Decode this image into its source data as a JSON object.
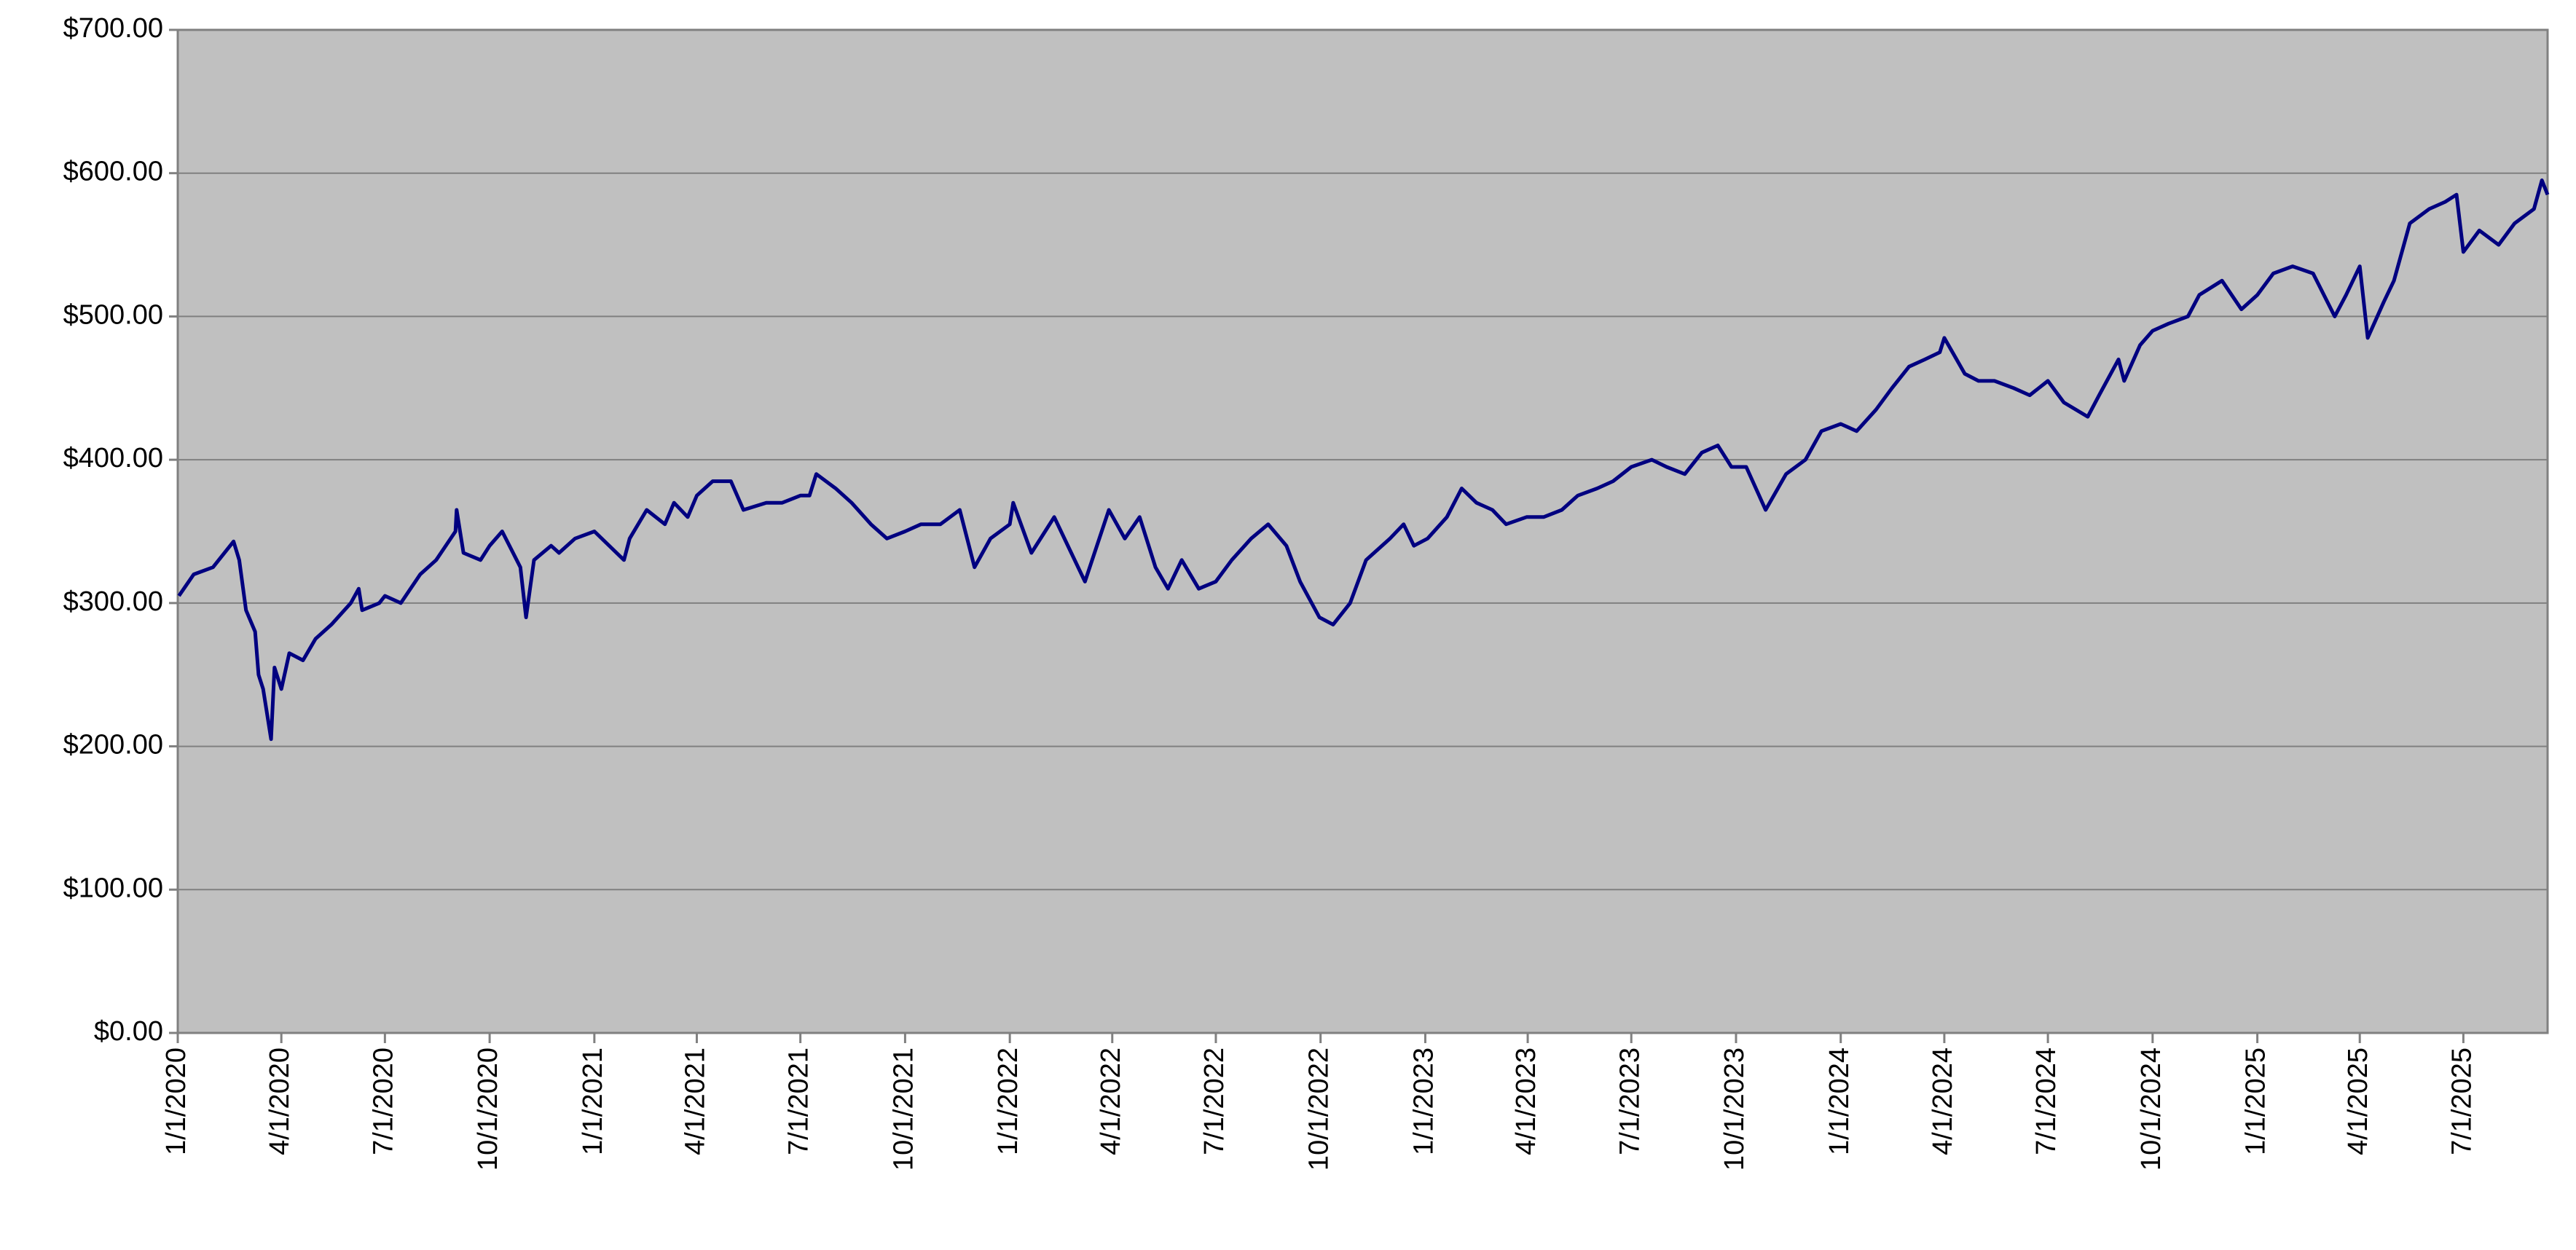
{
  "chart_data": {
    "type": "line",
    "color": "#000080",
    "grid": true,
    "xlim": [
      "1/1/2020",
      "9/13/2025"
    ],
    "xticks": [
      "1/1/2020",
      "4/1/2020",
      "7/1/2020",
      "10/1/2020",
      "1/1/2021",
      "4/1/2021",
      "7/1/2021",
      "10/1/2021",
      "1/1/2022",
      "4/1/2022",
      "7/1/2022",
      "10/1/2022",
      "1/1/2023",
      "4/1/2023",
      "7/1/2023",
      "10/1/2023",
      "1/1/2024",
      "4/1/2024",
      "7/1/2024",
      "10/1/2024",
      "1/1/2025",
      "4/1/2025",
      "7/1/2025"
    ],
    "ylim": [
      0,
      700
    ],
    "yticks": [
      {
        "value": 0,
        "label": "$0.00"
      },
      {
        "value": 100,
        "label": "$100.00"
      },
      {
        "value": 200,
        "label": "$200.00"
      },
      {
        "value": 300,
        "label": "$300.00"
      },
      {
        "value": 400,
        "label": "$400.00"
      },
      {
        "value": 500,
        "label": "$500.00"
      },
      {
        "value": 600,
        "label": "$600.00"
      },
      {
        "value": 700,
        "label": "$700.00"
      }
    ],
    "x": [
      "1/2/2020",
      "1/15/2020",
      "2/1/2020",
      "2/19/2020",
      "2/24/2020",
      "3/1/2020",
      "3/9/2020",
      "3/12/2020",
      "3/16/2020",
      "3/23/2020",
      "3/26/2020",
      "4/1/2020",
      "4/8/2020",
      "4/20/2020",
      "5/1/2020",
      "5/15/2020",
      "6/1/2020",
      "6/8/2020",
      "6/11/2020",
      "6/26/2020",
      "7/1/2020",
      "7/15/2020",
      "8/1/2020",
      "8/15/2020",
      "9/1/2020",
      "9/2/2020",
      "9/8/2020",
      "9/23/2020",
      "10/1/2020",
      "10/12/2020",
      "10/28/2020",
      "11/2/2020",
      "11/9/2020",
      "11/24/2020",
      "12/1/2020",
      "12/15/2020",
      "1/1/2021",
      "1/27/2021",
      "2/1/2021",
      "2/16/2021",
      "3/4/2021",
      "3/12/2021",
      "3/24/2021",
      "4/1/2021",
      "4/15/2021",
      "5/1/2021",
      "5/12/2021",
      "6/1/2021",
      "6/15/2021",
      "7/1/2021",
      "7/9/2021",
      "7/15/2021",
      "8/1/2021",
      "8/15/2021",
      "9/1/2021",
      "9/15/2021",
      "10/1/2021",
      "10/15/2021",
      "11/1/2021",
      "11/18/2021",
      "12/1/2021",
      "12/15/2021",
      "1/1/2022",
      "1/4/2022",
      "1/20/2022",
      "2/1/2022",
      "2/9/2022",
      "2/24/2022",
      "3/8/2022",
      "3/29/2022",
      "4/12/2022",
      "4/25/2022",
      "5/9/2022",
      "5/20/2022",
      "6/1/2022",
      "6/16/2022",
      "7/1/2022",
      "7/15/2022",
      "8/1/2022",
      "8/16/2022",
      "9/1/2022",
      "9/13/2022",
      "9/30/2022",
      "10/12/2022",
      "10/27/2022",
      "11/10/2022",
      "12/1/2022",
      "12/13/2022",
      "12/22/2022",
      "1/3/2023",
      "1/20/2023",
      "2/2/2023",
      "2/15/2023",
      "3/1/2023",
      "3/13/2023",
      "3/31/2023",
      "4/15/2023",
      "5/1/2023",
      "5/15/2023",
      "6/1/2023",
      "6/15/2023",
      "7/1/2023",
      "7/19/2023",
      "8/1/2023",
      "8/17/2023",
      "9/1/2023",
      "9/15/2023",
      "9/27/2023",
      "10/10/2023",
      "10/27/2023",
      "11/14/2023",
      "12/1/2023",
      "12/15/2023",
      "1/1/2024",
      "1/15/2024",
      "2/1/2024",
      "2/15/2024",
      "3/1/2024",
      "3/15/2024",
      "3/28/2024",
      "4/1/2024",
      "4/19/2024",
      "5/1/2024",
      "5/15/2024",
      "6/1/2024",
      "6/15/2024",
      "7/1/2024",
      "7/15/2024",
      "8/5/2024",
      "8/15/2024",
      "9/1/2024",
      "9/6/2024",
      "9/20/2024",
      "10/1/2024",
      "10/15/2024",
      "11/1/2024",
      "11/11/2024",
      "12/1/2024",
      "12/18/2024",
      "1/1/2025",
      "1/15/2025",
      "2/1/2025",
      "2/19/2025",
      "3/10/2025",
      "3/20/2025",
      "4/1/2025",
      "4/8/2025",
      "4/22/2025",
      "5/1/2025",
      "5/15/2025",
      "6/1/2025",
      "6/15/2025",
      "6/25/2025",
      "7/1/2025",
      "7/15/2025",
      "8/1/2025",
      "8/15/2025",
      "9/1/2025",
      "9/8/2025",
      "9/13/2025"
    ],
    "values": [
      305,
      320,
      325,
      343,
      330,
      295,
      280,
      250,
      240,
      205,
      255,
      240,
      265,
      260,
      275,
      285,
      300,
      310,
      295,
      300,
      305,
      300,
      320,
      330,
      350,
      365,
      335,
      330,
      340,
      350,
      325,
      290,
      330,
      340,
      335,
      345,
      350,
      330,
      345,
      365,
      355,
      370,
      360,
      375,
      385,
      385,
      365,
      370,
      370,
      375,
      375,
      390,
      380,
      370,
      355,
      345,
      350,
      355,
      355,
      365,
      325,
      345,
      355,
      370,
      335,
      350,
      360,
      335,
      315,
      365,
      345,
      360,
      325,
      310,
      330,
      310,
      315,
      330,
      345,
      355,
      340,
      315,
      290,
      285,
      300,
      330,
      345,
      355,
      340,
      345,
      360,
      380,
      370,
      365,
      355,
      360,
      360,
      365,
      375,
      380,
      385,
      395,
      400,
      395,
      390,
      405,
      410,
      395,
      395,
      365,
      390,
      400,
      420,
      425,
      420,
      435,
      450,
      465,
      470,
      475,
      485,
      460,
      455,
      455,
      450,
      445,
      455,
      440,
      430,
      445,
      470,
      455,
      480,
      490,
      495,
      500,
      515,
      525,
      505,
      515,
      530,
      535,
      530,
      500,
      515,
      535,
      485,
      510,
      525,
      565,
      575,
      580,
      585,
      545,
      560,
      550,
      565,
      575,
      595,
      585
    ]
  }
}
